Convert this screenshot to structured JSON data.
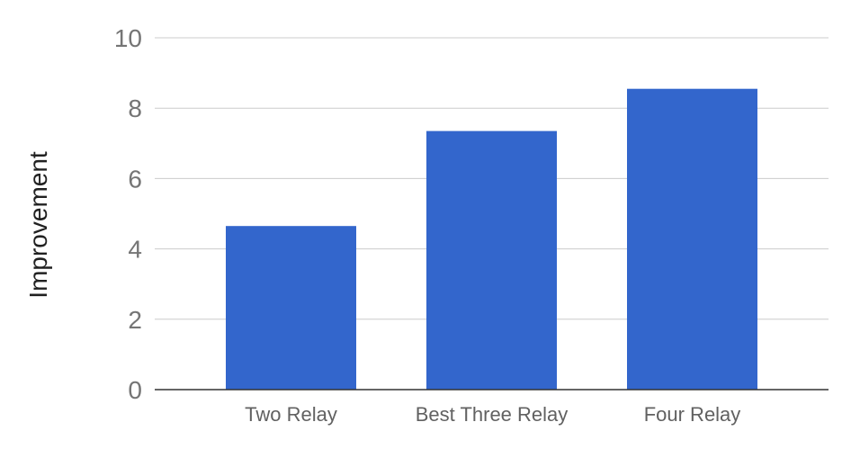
{
  "chart_data": {
    "type": "bar",
    "title": "",
    "xlabel": "",
    "ylabel": "Improvement",
    "categories": [
      "Two Relay",
      "Best Three Relay",
      "Four Relay"
    ],
    "series": [
      {
        "values": [
          4.65,
          7.35,
          8.55
        ],
        "color": "#3366cc"
      }
    ],
    "ylim": [
      0,
      10
    ],
    "yticks": [
      0,
      2,
      4,
      6,
      8,
      10
    ],
    "ytick_labels": [
      "0",
      "2",
      "4",
      "6",
      "8",
      "10"
    ],
    "grid": true,
    "legend": "none",
    "colors": {
      "bar": "#3366cc",
      "grid": "#cccccc",
      "baseline": "#333333",
      "tick_text": "#757575",
      "category_text": "#616161",
      "axis_title": "#212121"
    }
  }
}
